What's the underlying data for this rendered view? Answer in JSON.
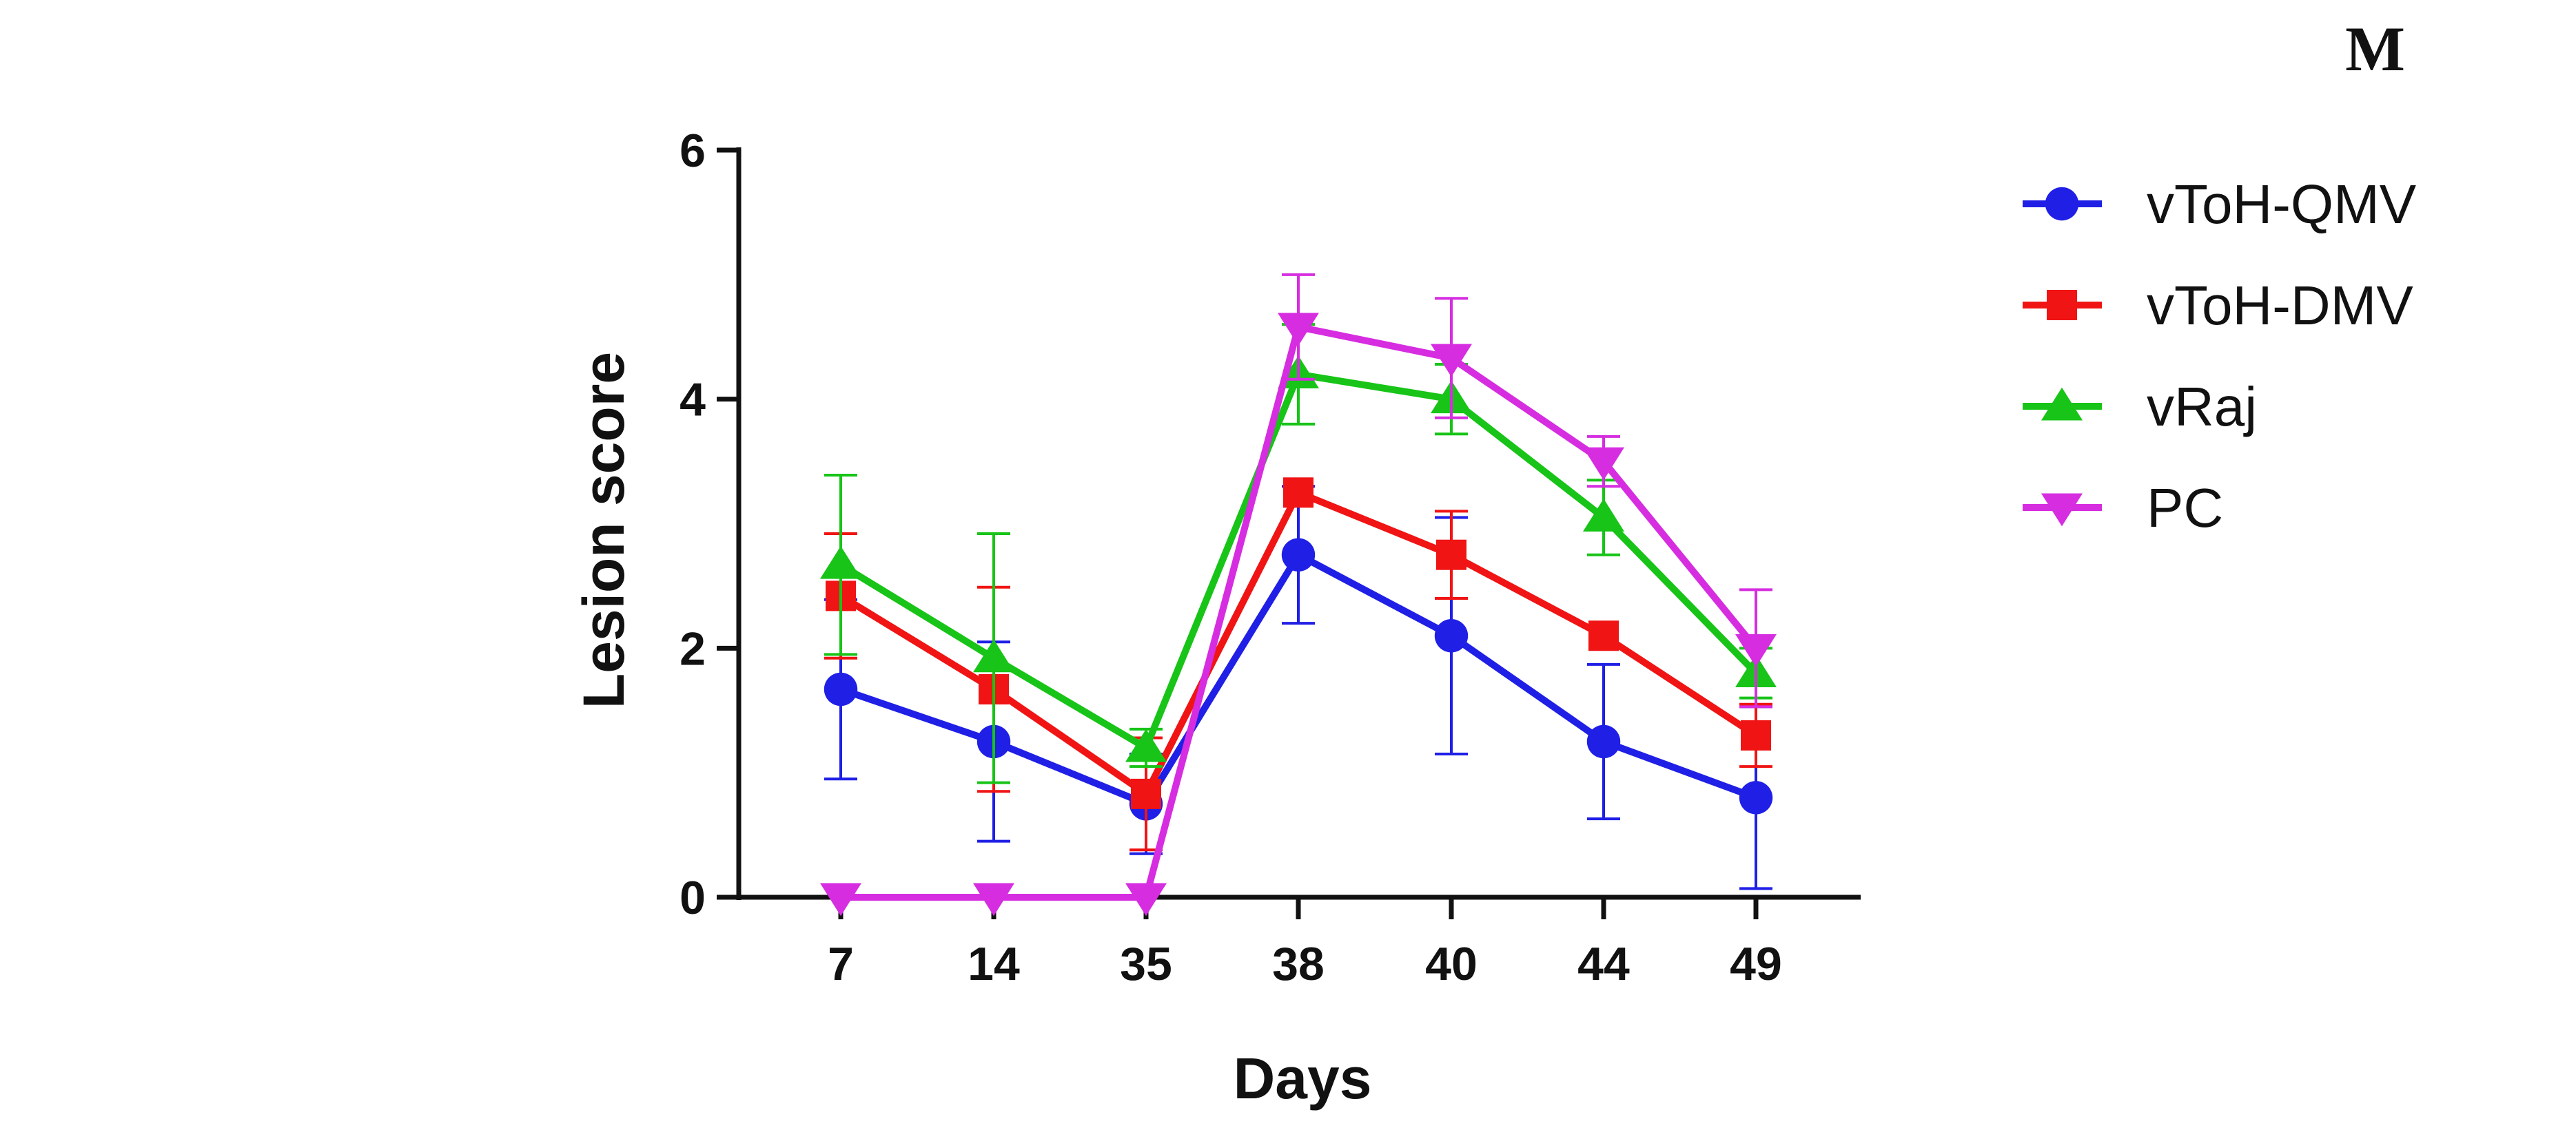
{
  "panel_label": "M",
  "chart_data": {
    "type": "line",
    "title": "",
    "xlabel": "Days",
    "ylabel": "Lesion score",
    "categories": [
      "7",
      "14",
      "35",
      "38",
      "40",
      "44",
      "49"
    ],
    "ylim": [
      0,
      6
    ],
    "yticks": [
      0,
      2,
      4,
      6
    ],
    "legend_position": "right",
    "series": [
      {
        "name": "vToH-QMV",
        "color": "#1f1fe6",
        "marker": "circle",
        "values": [
          1.67,
          1.25,
          0.75,
          2.75,
          2.1,
          1.25,
          0.8
        ],
        "errors": [
          0.72,
          0.8,
          0.4,
          0.55,
          0.95,
          0.62,
          0.73
        ]
      },
      {
        "name": "vToH-DMV",
        "color": "#f01414",
        "marker": "square",
        "values": [
          2.42,
          1.67,
          0.83,
          3.25,
          2.75,
          2.1,
          1.3
        ],
        "errors": [
          0.5,
          0.82,
          0.45,
          0.0,
          0.35,
          0.0,
          0.25
        ]
      },
      {
        "name": "vRaj",
        "color": "#17c417",
        "marker": "triangle-up",
        "values": [
          2.67,
          1.92,
          1.2,
          4.2,
          4.0,
          3.05,
          1.8
        ],
        "errors": [
          0.72,
          1.0,
          0.15,
          0.4,
          0.28,
          0.3,
          0.2
        ]
      },
      {
        "name": "PC",
        "color": "#d62de0",
        "marker": "triangle-down",
        "values": [
          0,
          0,
          0,
          4.58,
          4.33,
          3.5,
          2.0
        ],
        "errors": [
          0,
          0,
          0,
          0.42,
          0.48,
          0.2,
          0.47
        ]
      }
    ]
  }
}
